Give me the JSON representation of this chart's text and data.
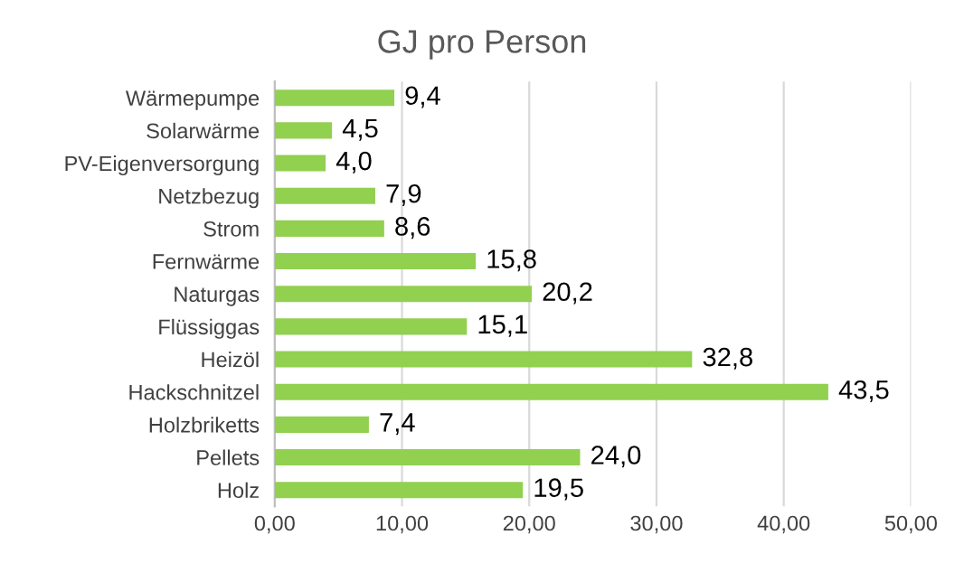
{
  "chart_data": {
    "type": "bar",
    "orientation": "horizontal",
    "title": "GJ pro Person",
    "categories": [
      "Wärmepumpe",
      "Solarwärme",
      "PV-Eigenversorgung",
      "Netzbezug",
      "Strom",
      "Fernwärme",
      "Naturgas",
      "Flüssiggas",
      "Heizöl",
      "Hackschnitzel",
      "Holzbriketts",
      "Pellets",
      "Holz"
    ],
    "values": [
      9.4,
      4.5,
      4.0,
      7.9,
      8.6,
      15.8,
      20.2,
      15.1,
      32.8,
      43.5,
      7.4,
      24.0,
      19.5
    ],
    "value_labels": [
      "9,4",
      "4,5",
      "4,0",
      "7,9",
      "8,6",
      "15,8",
      "20,2",
      "15,1",
      "32,8",
      "43,5",
      "7,4",
      "24,0",
      "19,5"
    ],
    "color": "#92d050",
    "xlim": [
      0,
      50
    ],
    "xticks": [
      {
        "value": 0,
        "label": "0,00"
      },
      {
        "value": 10,
        "label": "10,00"
      },
      {
        "value": 20,
        "label": "20,00"
      },
      {
        "value": 30,
        "label": "30,00"
      },
      {
        "value": 40,
        "label": "40,00"
      },
      {
        "value": 50,
        "label": "50,00"
      }
    ],
    "grid": "x",
    "legend": false
  }
}
